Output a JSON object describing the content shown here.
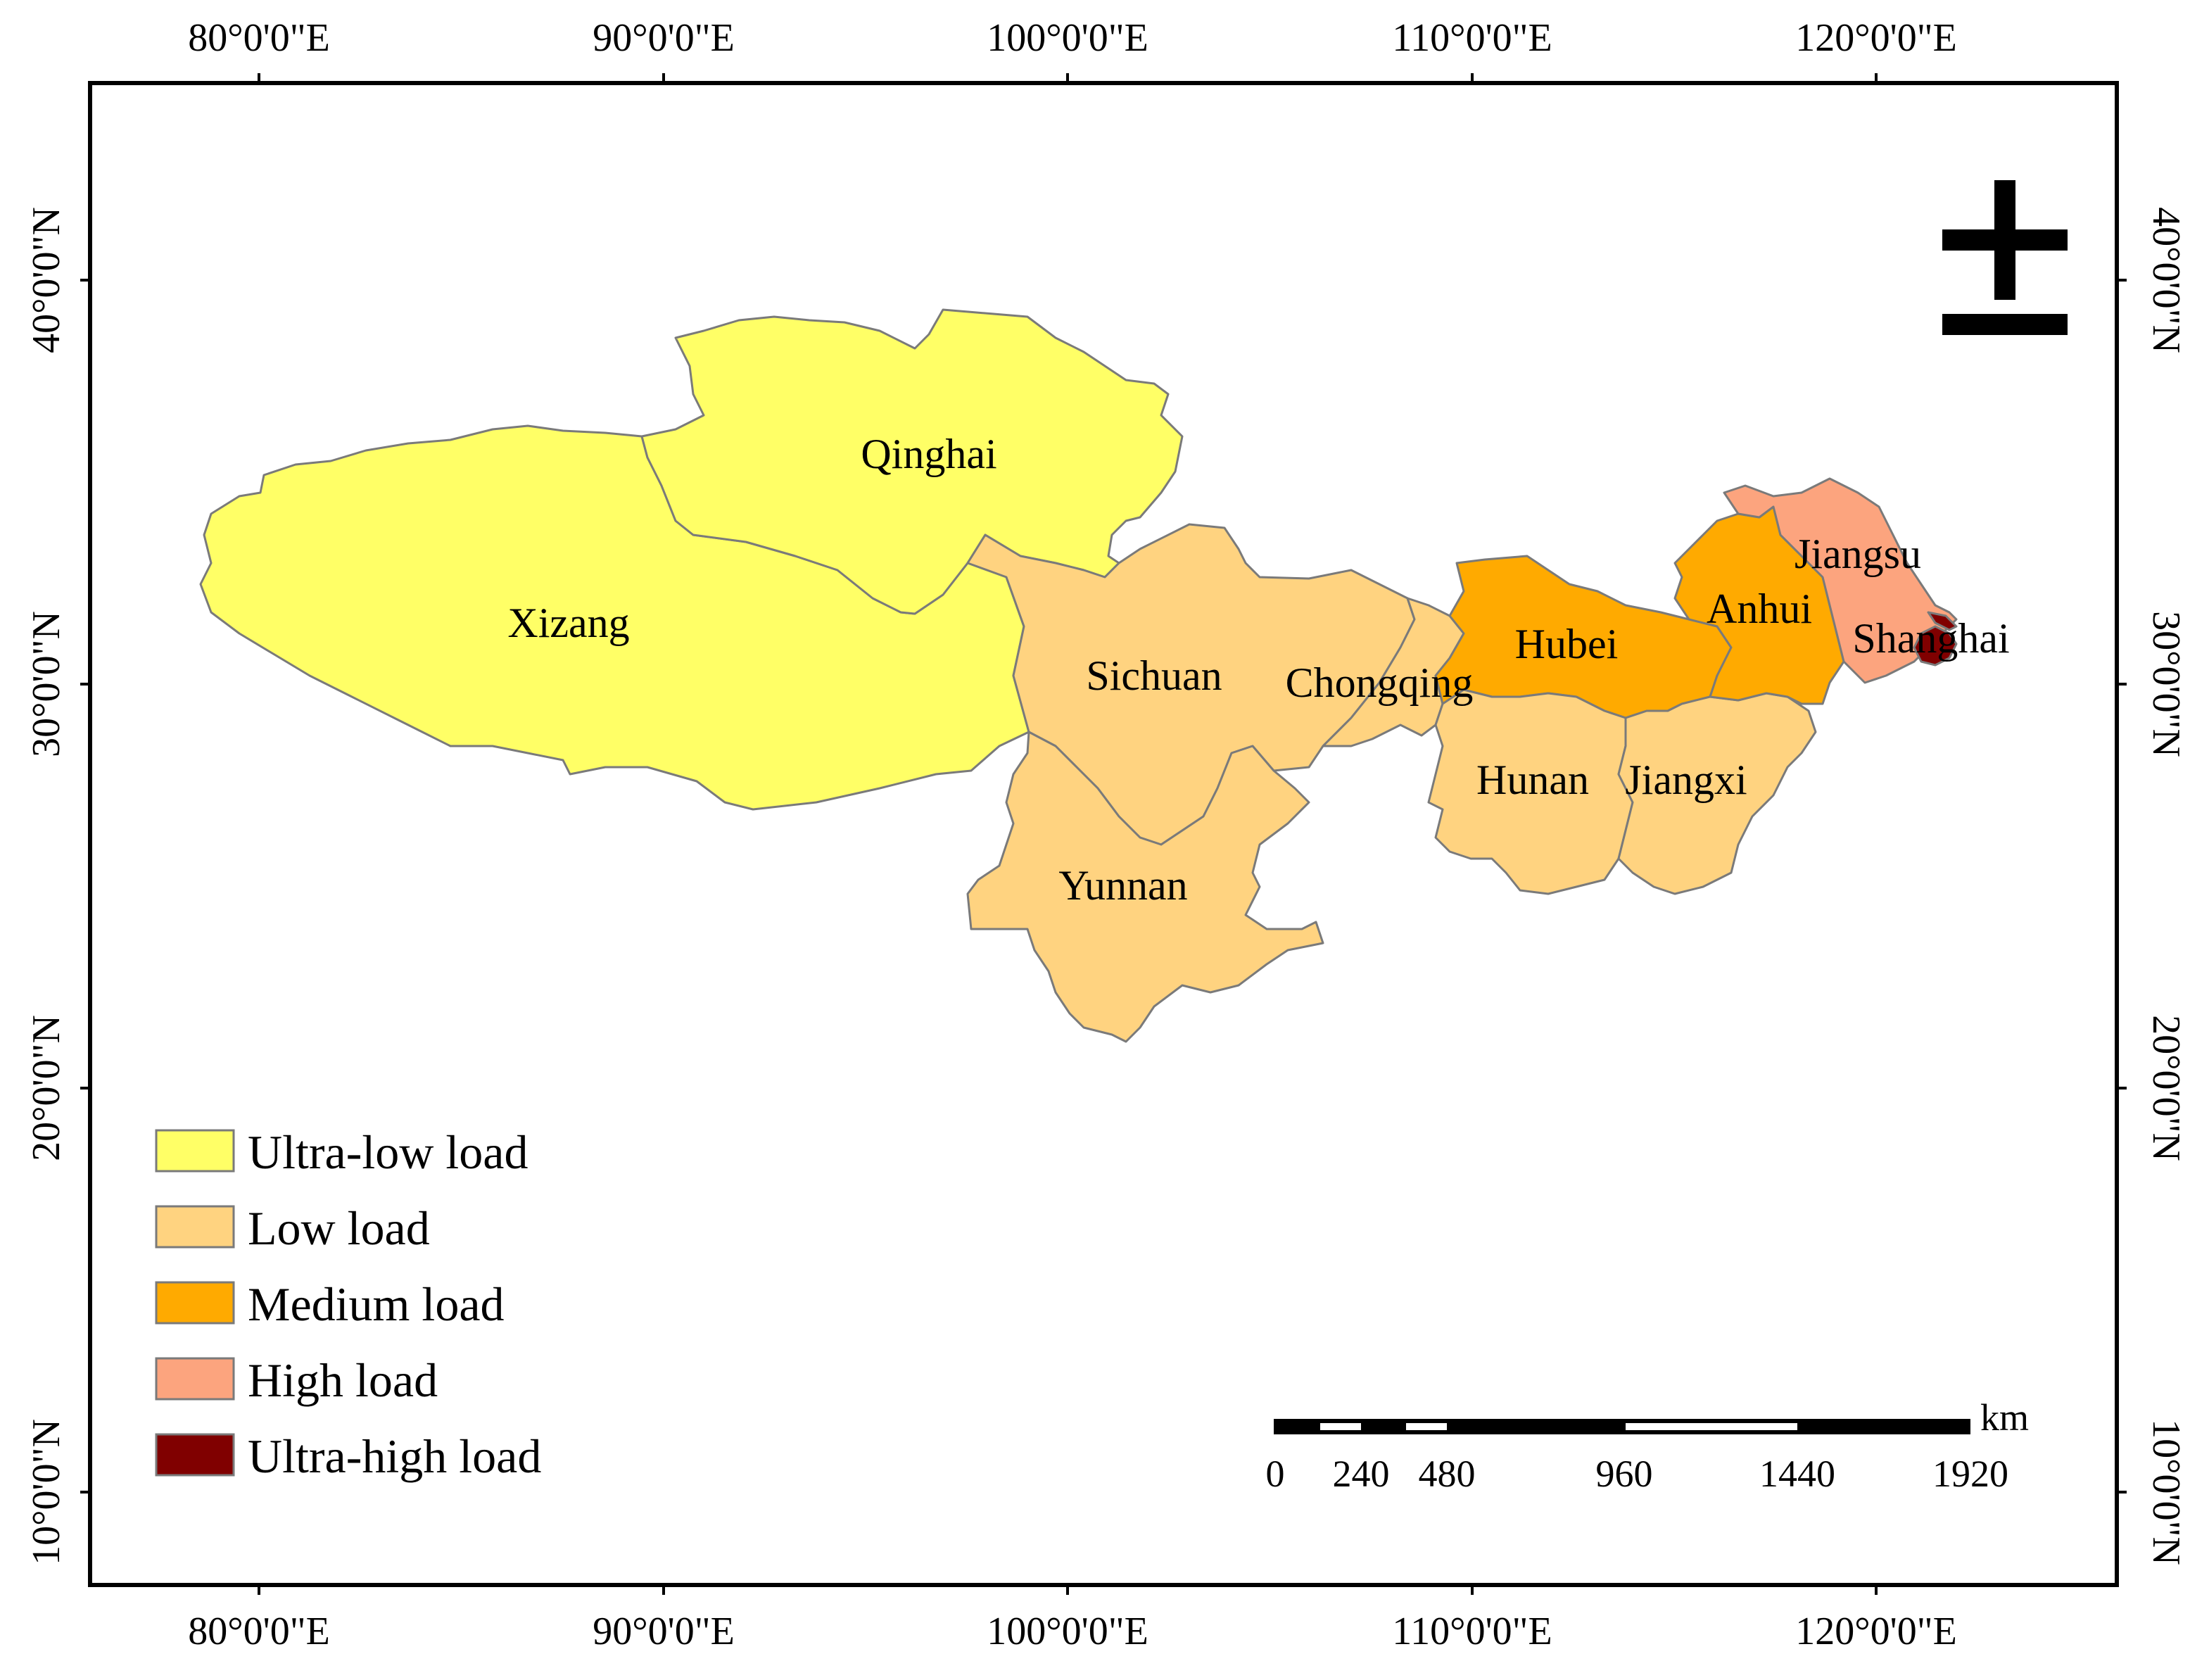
{
  "map": {
    "lon_ticks": [
      "80°0'0\"E",
      "90°0'0\"E",
      "100°0'0\"E",
      "110°0'0\"E",
      "120°0'0\"E"
    ],
    "lat_ticks": [
      "40°0'0\"N",
      "30°0'0\"N",
      "20°0'0\"N",
      "10°0'0\"N"
    ],
    "lon_values": [
      80,
      90,
      100,
      110,
      120
    ],
    "lat_values": [
      40,
      30,
      20,
      10
    ]
  },
  "legend": {
    "items": [
      {
        "label": "Ultra-low load",
        "color": "#ffff66"
      },
      {
        "label": "Low load",
        "color": "#ffd380"
      },
      {
        "label": "Medium load",
        "color": "#ffaa00"
      },
      {
        "label": "High load",
        "color": "#fca47e"
      },
      {
        "label": "Ultra-high load",
        "color": "#800000"
      }
    ]
  },
  "regions": {
    "xizang": "Xizang",
    "qinghai": "Qinghai",
    "sichuan": "Sichuan",
    "chongqing": "Chongqing",
    "yunnan": "Yunnan",
    "hubei": "Hubei",
    "hunan": "Hunan",
    "jiangxi": "Jiangxi",
    "anhui": "Anhui",
    "jiangsu": "Jiangsu",
    "shanghai": "Shanghai"
  },
  "scale_bar": {
    "unit": "km",
    "labels": [
      "0",
      "240",
      "480",
      "960",
      "1440",
      "1920"
    ]
  },
  "north_arrow": {
    "icon": "north-arrow-icon"
  }
}
